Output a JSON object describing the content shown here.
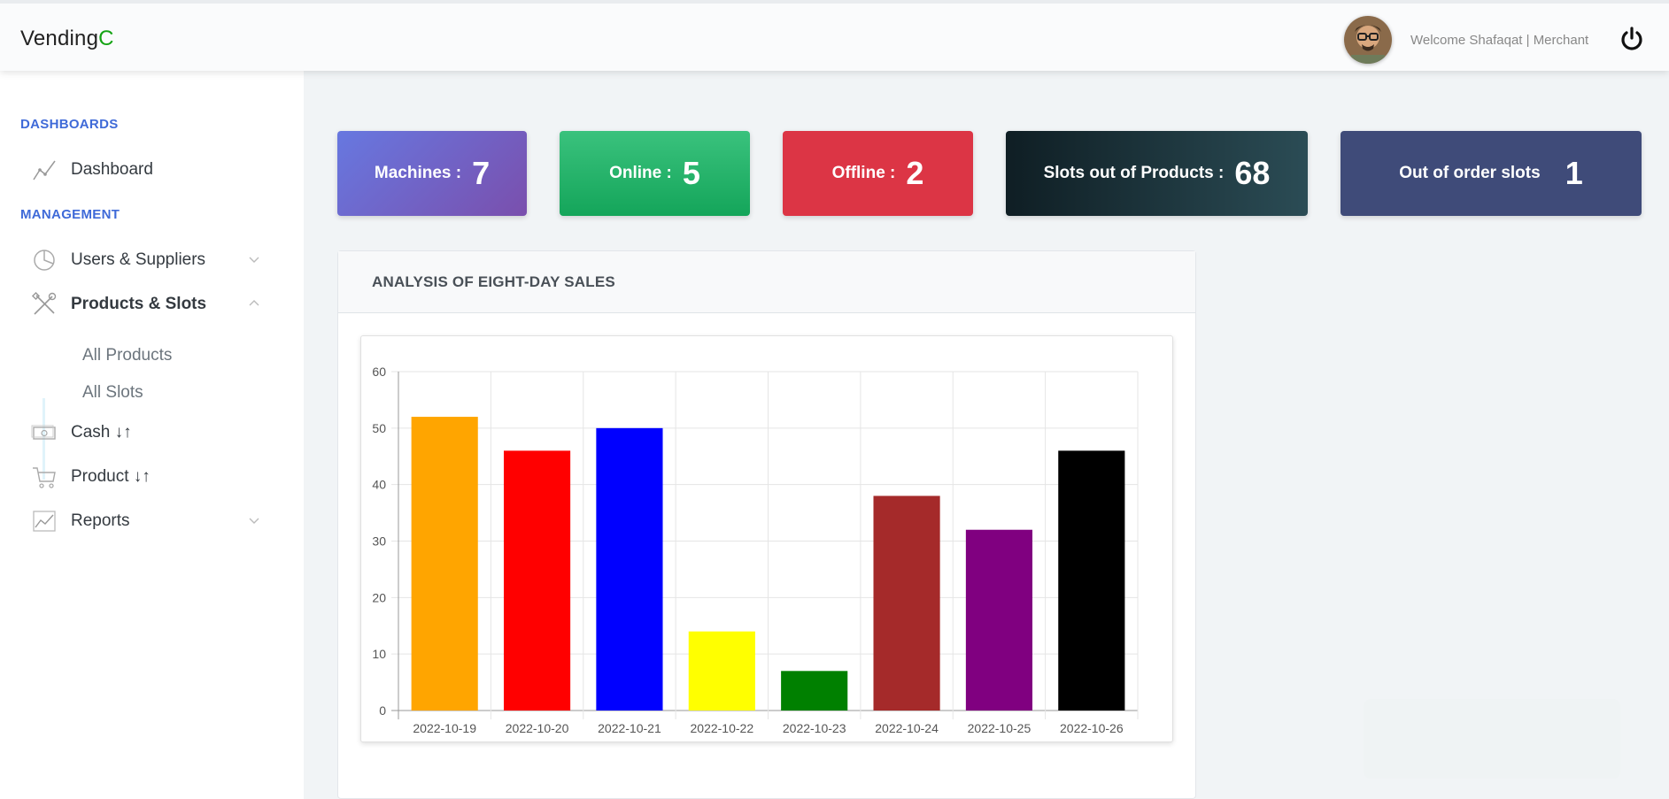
{
  "header": {
    "logo_main": "Vending",
    "logo_accent": "C",
    "welcome": "Welcome Shafaqat | Merchant"
  },
  "sidebar": {
    "dashboards_heading": "DASHBOARDS",
    "dashboard_label": "Dashboard",
    "management_heading": "MANAGEMENT",
    "items": [
      {
        "label": "Users & Suppliers",
        "icon": "pie-chart-icon"
      },
      {
        "label": "Products & Slots",
        "icon": "tools-icon"
      },
      {
        "label": "Cash ↓↑",
        "icon": "cash-icon"
      },
      {
        "label": "Product ↓↑",
        "icon": "cart-icon"
      },
      {
        "label": "Reports",
        "icon": "line-chart-icon"
      }
    ],
    "sub_items": [
      "All Products",
      "All Slots"
    ]
  },
  "stats": [
    {
      "label": "Machines :",
      "value": "7"
    },
    {
      "label": "Online :",
      "value": "5"
    },
    {
      "label": "Offline :",
      "value": "2"
    },
    {
      "label": "Slots out of Products :",
      "value": "68"
    },
    {
      "label": "Out of order slots",
      "value": "1"
    }
  ],
  "panel": {
    "title": "ANALYSIS OF EIGHT-DAY SALES"
  },
  "chart_data": {
    "type": "bar",
    "categories": [
      "2022-10-19",
      "2022-10-20",
      "2022-10-21",
      "2022-10-22",
      "2022-10-23",
      "2022-10-24",
      "2022-10-25",
      "2022-10-26"
    ],
    "values": [
      52,
      46,
      50,
      14,
      7,
      38,
      32,
      46
    ],
    "colors": [
      "#ffa500",
      "#ff0000",
      "#0000ff",
      "#ffff00",
      "#008000",
      "#a52a2a",
      "#800080",
      "#000000"
    ],
    "ylim": [
      0,
      60
    ],
    "yticks": [
      0,
      10,
      20,
      30,
      40,
      50,
      60
    ],
    "grid": true
  }
}
